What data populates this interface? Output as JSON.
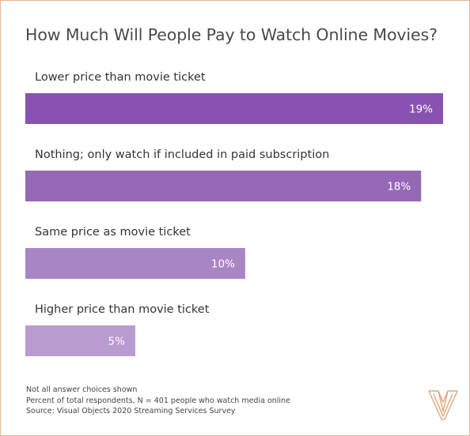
{
  "chart_data": {
    "type": "bar",
    "orientation": "horizontal",
    "title": "How Much Will People Pay to Watch Online Movies?",
    "categories": [
      "Lower price than movie ticket",
      "Nothing; only watch if included in paid subscription",
      "Same price as movie ticket",
      "Higher price than movie ticket"
    ],
    "values": [
      19,
      18,
      10,
      5
    ],
    "value_labels": [
      "19%",
      "18%",
      "10%",
      "5%"
    ],
    "unit": "%",
    "xlim": [
      0,
      19
    ],
    "grid": false,
    "legend": "none",
    "bar_colors": [
      "#8a52b0",
      "#9568b6",
      "#aa85c6",
      "#b99bd0"
    ]
  },
  "notes": [
    "Not all answer choices shown",
    "Percent of total respondents, N = 401 people who watch media online",
    "Source: Visual Objects 2020 Streaming Services Survey"
  ],
  "colors": {
    "frame_border": "#e8b98f",
    "logo": "#e0a77c"
  },
  "logo_icon": "visual-objects-logo-icon"
}
